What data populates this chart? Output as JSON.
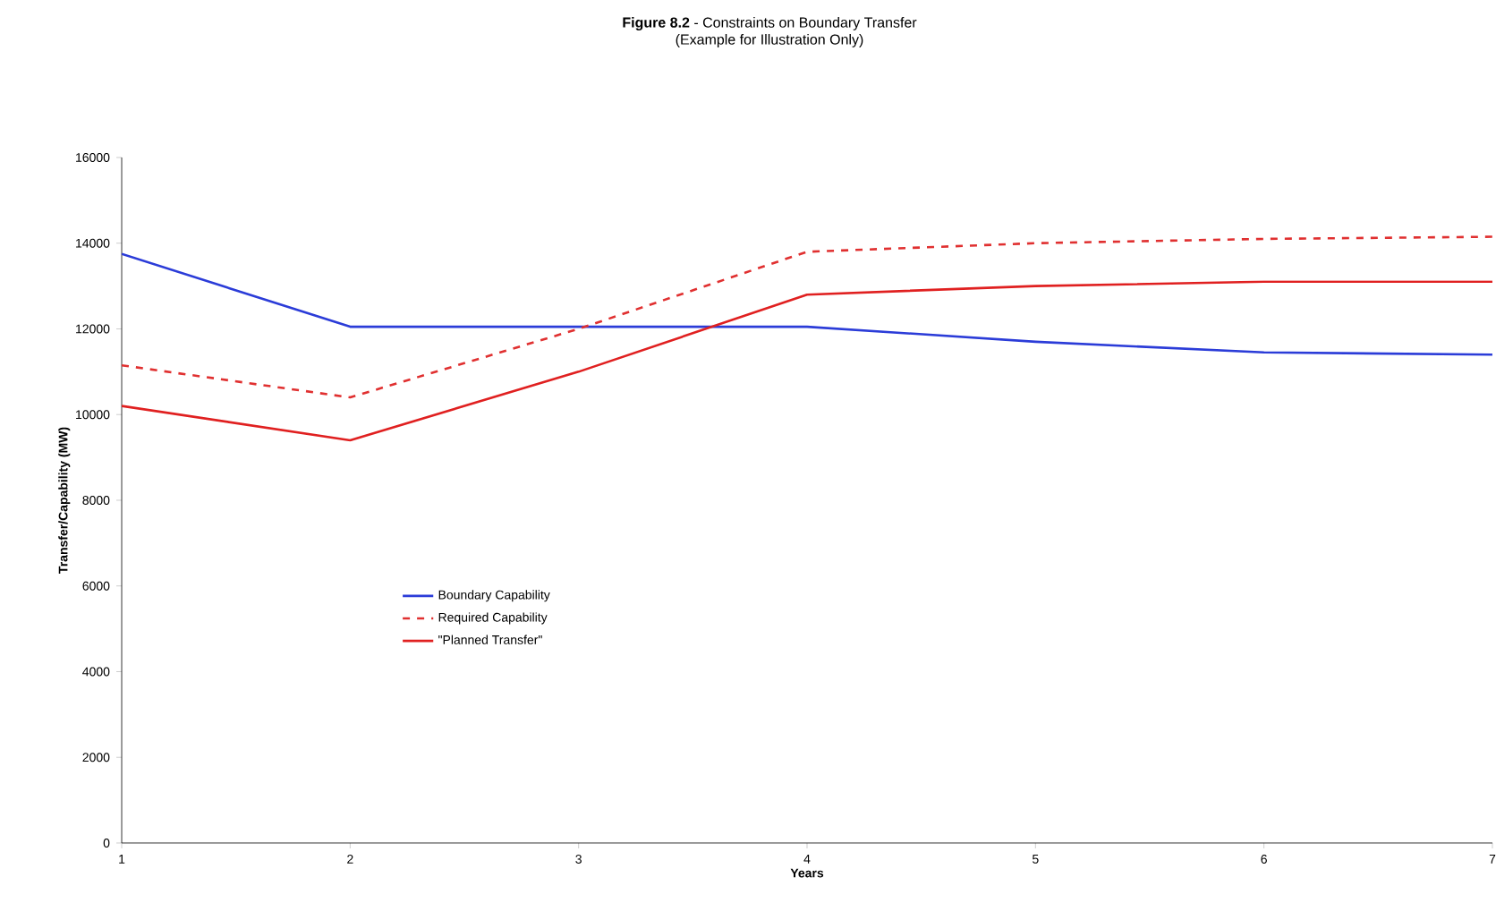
{
  "chart_data": {
    "type": "line",
    "title": "**Figure 8.2** - Constraints on Boundary Transfer",
    "subtitle": "(Example for Illustration Only)",
    "xlabel": "Years",
    "ylabel": "Transfer/Capability (MW)",
    "x": [
      1,
      2,
      3,
      4,
      5,
      6,
      7
    ],
    "series": [
      {
        "name": "Boundary Capability",
        "color": "#2b3cd8",
        "line_style": "solid",
        "values": [
          13750,
          12050,
          12050,
          12050,
          11700,
          11450,
          11400
        ]
      },
      {
        "name": "Required Capability",
        "color": "#e03030",
        "line_style": "dashed",
        "values": [
          11150,
          10400,
          12000,
          13800,
          14000,
          14100,
          14150
        ]
      },
      {
        "name": "\"Planned Transfer\"",
        "color": "#e02020",
        "line_style": "solid",
        "values": [
          10200,
          9400,
          11000,
          12800,
          13000,
          13100,
          13100
        ]
      }
    ],
    "xlim": [
      1,
      7
    ],
    "xticks": [
      1,
      2,
      3,
      4,
      5,
      6,
      7
    ],
    "ylim": [
      0,
      16000
    ],
    "yticks": [
      0,
      2000,
      4000,
      6000,
      8000,
      10000,
      12000,
      14000,
      16000
    ],
    "grid": false,
    "legend": "left",
    "marker": "none"
  }
}
